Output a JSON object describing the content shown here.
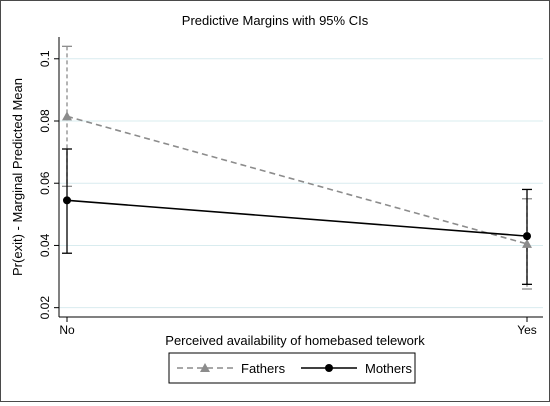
{
  "chart_data": {
    "type": "line",
    "title": "Predictive Margins with 95% CIs",
    "xlabel": "Perceived availability of homebased telework",
    "ylabel": "Pr(exit) - Marginal Predicted Mean",
    "categories": [
      "No",
      "Yes"
    ],
    "ylim": [
      0.017,
      0.107
    ],
    "yticks": [
      0.02,
      0.04,
      0.06,
      0.08,
      0.1
    ],
    "ytick_labels": [
      "0.02",
      "0.04",
      "0.06",
      "0.08",
      "0.1"
    ],
    "grid": true,
    "legend_position": "bottom",
    "series": [
      {
        "name": "Fathers",
        "color": "#8c8c8c",
        "line_style": "dashed",
        "marker": "triangle",
        "values": [
          0.0815,
          0.0405
        ],
        "ci_lower": [
          0.059,
          0.026
        ],
        "ci_upper": [
          0.104,
          0.055
        ]
      },
      {
        "name": "Mothers",
        "color": "#000000",
        "line_style": "solid",
        "marker": "circle",
        "values": [
          0.0545,
          0.043
        ],
        "ci_lower": [
          0.0375,
          0.0275
        ],
        "ci_upper": [
          0.071,
          0.058
        ]
      }
    ]
  }
}
